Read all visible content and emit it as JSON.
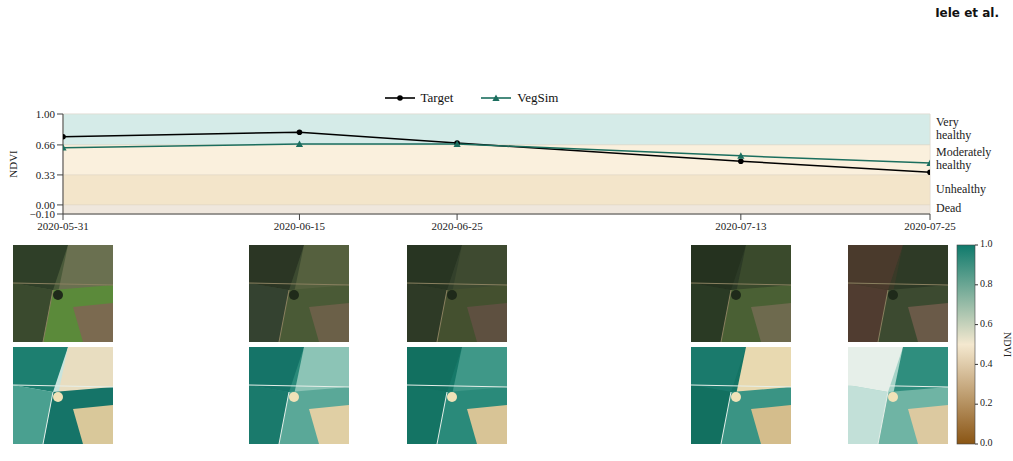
{
  "page_header": "Iele et al.",
  "chart_data": {
    "type": "line",
    "x": [
      "2020-05-31",
      "2020-06-15",
      "2020-06-25",
      "2020-07-13",
      "2020-07-25"
    ],
    "series": [
      {
        "name": "Target",
        "color": "#000000",
        "marker": "circle",
        "values": [
          0.75,
          0.8,
          0.68,
          0.48,
          0.36
        ]
      },
      {
        "name": "VegSim",
        "color": "#1b6e5e",
        "marker": "triangle",
        "values": [
          0.63,
          0.67,
          0.67,
          0.54,
          0.46
        ]
      }
    ],
    "xlim": [
      "2020-05-31",
      "2020-07-25"
    ],
    "xticks": [
      "2020-05-31",
      "2020-06-15",
      "2020-06-25",
      "2020-07-13",
      "2020-07-25"
    ],
    "ylim": [
      -0.1,
      1.0
    ],
    "yticks": [
      {
        "value": -0.1,
        "label": "−0.10"
      },
      {
        "value": 0,
        "label": "0.00"
      },
      0.33,
      0.66,
      {
        "value": 1.0,
        "label": "1.00"
      }
    ],
    "y_label": "NDVI",
    "grid": true,
    "legend": "top",
    "bands": [
      {
        "label": "Very healthy",
        "range": [
          0.66,
          1.0
        ],
        "color": "#d5ebe8"
      },
      {
        "label": "Moderately healthy",
        "range": [
          0.33,
          0.66
        ],
        "color": "#faf0dd"
      },
      {
        "label": "Unhealthy",
        "range": [
          0,
          0.33
        ],
        "color": "#f3e5ca"
      },
      {
        "label": "Dead",
        "range": [
          -0.1,
          0
        ],
        "color": "#efe7dd"
      }
    ],
    "colorbar": {
      "label": "NDVI",
      "range": [
        0,
        1.0
      ],
      "ticks": [
        {
          "value": 0,
          "label": "0.0"
        },
        0.2,
        0.4,
        0.6,
        0.8,
        {
          "value": 1.0,
          "label": "1.0"
        }
      ],
      "colors": [
        "#8a5514",
        "#f4e8cf",
        "#0f7a6c"
      ]
    }
  }
}
